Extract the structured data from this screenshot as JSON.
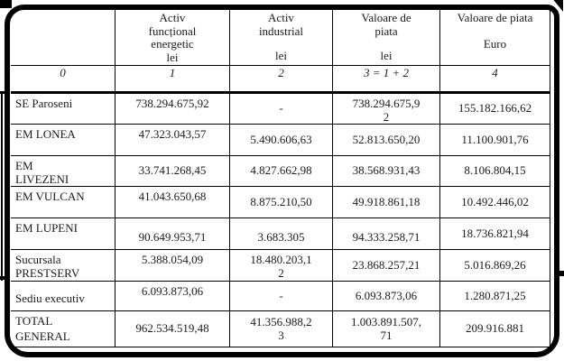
{
  "table": {
    "header": {
      "corner": "",
      "columns": [
        {
          "title": "Activ\nfuncțional\nenergetic",
          "unit": "lei"
        },
        {
          "title": "Activ\nindustrial",
          "unit": "lei"
        },
        {
          "title": "Valoare de\npiata",
          "unit": "lei"
        },
        {
          "title": "Valoare de piata",
          "unit": "Euro"
        }
      ],
      "index_row": [
        "0",
        "1",
        "2",
        "3 = 1 + 2",
        "4"
      ]
    },
    "rows": [
      {
        "label": "SE Paroseni",
        "values": [
          "738.294.675,92",
          "-",
          "738.294.675,9\n2",
          "155.182.166,62"
        ]
      },
      {
        "label": "EM LONEA",
        "values": [
          "47.323.043,57",
          "5.490.606,63",
          "52.813.650,20",
          "11.100.901,76"
        ]
      },
      {
        "label": "EM\nLIVEZENI",
        "values": [
          "33.741.268,45",
          "4.827.662,98",
          "38.568.931,43",
          "8.106.804,15"
        ]
      },
      {
        "label": "EM VULCAN",
        "values": [
          "41.043.650,68",
          "8.875.210,50",
          "49.918.861,18",
          "10.492.446,02"
        ]
      },
      {
        "label": "EM LUPENI",
        "values": [
          "90.649.953,71",
          "3.683.305",
          "94.333.258,71",
          "18.736.821,94"
        ]
      },
      {
        "label": "Sucursala\nPRESTSERV",
        "values": [
          "5.388.054,09",
          "18.480.203,1\n2",
          "23.868.257,21",
          "5.016.869,26"
        ]
      },
      {
        "label": "Sediu executiv",
        "values": [
          "6.093.873,06",
          "-",
          "6.093.873,06",
          "1.280.871,25"
        ]
      },
      {
        "label": "TOTAL\nGENERAL",
        "values": [
          "962.534.519,48",
          "41.356.988,2\n3",
          "1.003.891.507,\n71",
          "209.916.881"
        ]
      }
    ]
  },
  "colors": {
    "ink": "#1b1b1b",
    "paper": "#ffffff"
  }
}
